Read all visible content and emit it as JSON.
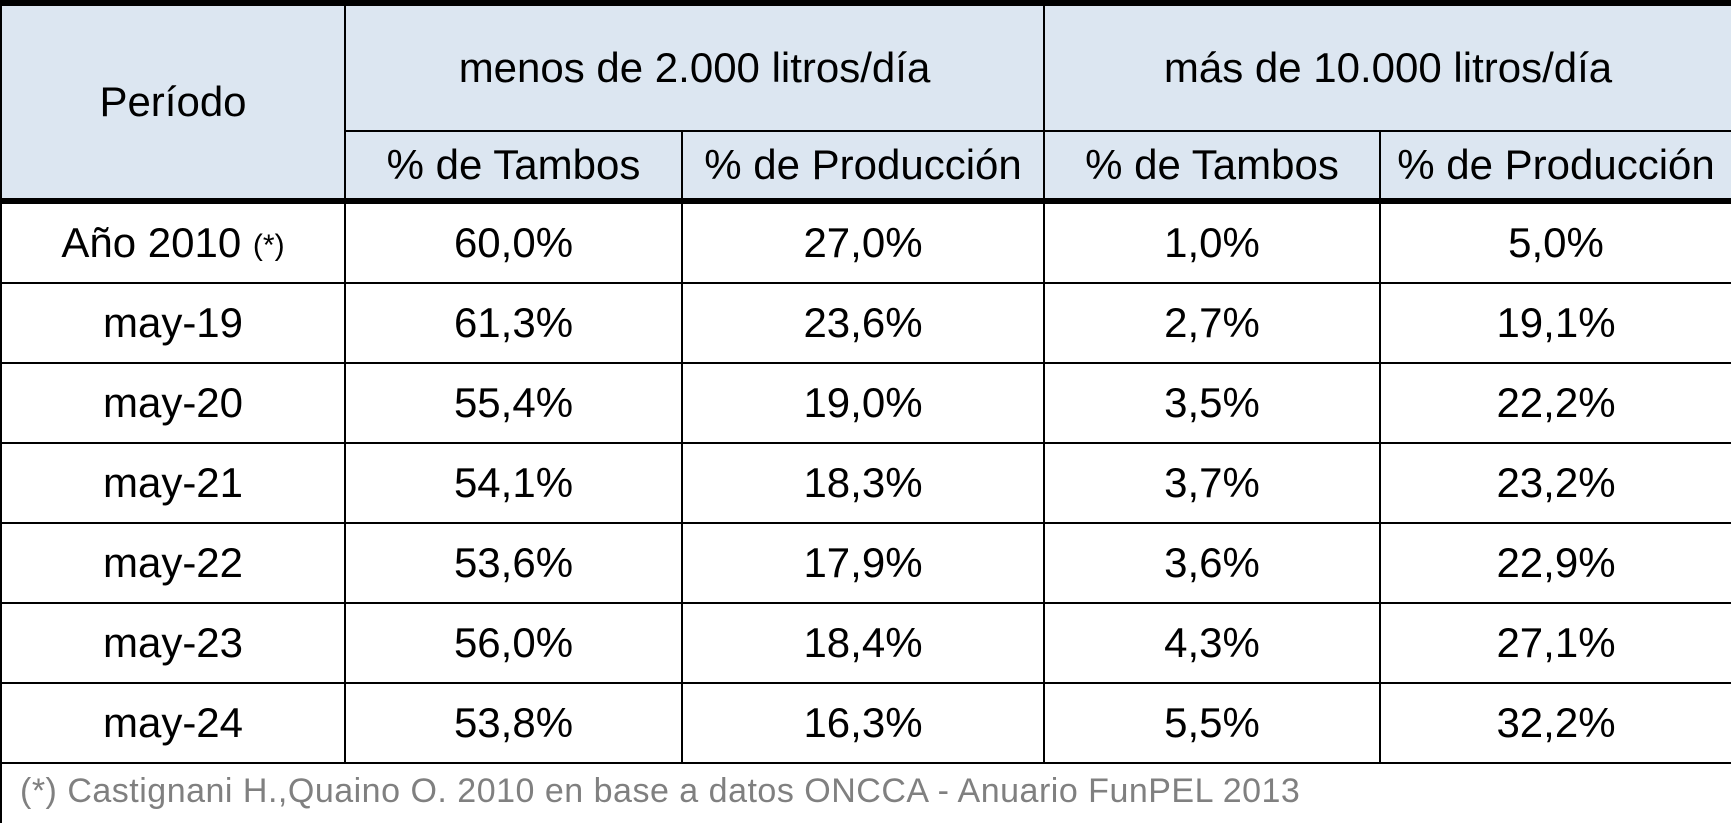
{
  "table": {
    "period_header": "Período",
    "groups": [
      {
        "label": "menos de 2.000 litros/día"
      },
      {
        "label": "más de 10.000 litros/día"
      }
    ],
    "subheaders": [
      "% de Tambos",
      "% de Producción",
      "% de Tambos",
      "% de Producción"
    ],
    "rows": [
      {
        "period": "Año 2010",
        "note": "(*)",
        "values": [
          "60,0%",
          "27,0%",
          "1,0%",
          "5,0%"
        ]
      },
      {
        "period": "may-19",
        "note": "",
        "values": [
          "61,3%",
          "23,6%",
          "2,7%",
          "19,1%"
        ]
      },
      {
        "period": "may-20",
        "note": "",
        "values": [
          "55,4%",
          "19,0%",
          "3,5%",
          "22,2%"
        ]
      },
      {
        "period": "may-21",
        "note": "",
        "values": [
          "54,1%",
          "18,3%",
          "3,7%",
          "23,2%"
        ]
      },
      {
        "period": "may-22",
        "note": "",
        "values": [
          "53,6%",
          "17,9%",
          "3,6%",
          "22,9%"
        ]
      },
      {
        "period": "may-23",
        "note": "",
        "values": [
          "56,0%",
          "18,4%",
          "4,3%",
          "27,1%"
        ]
      },
      {
        "period": "may-24",
        "note": "",
        "values": [
          "53,8%",
          "16,3%",
          "5,5%",
          "32,2%"
        ]
      }
    ]
  },
  "footnote": "(*) Castignani H.,Quaino O. 2010 en base a datos ONCCA - Anuario FunPEL 2013",
  "colors": {
    "header_bg": "#dce6f1",
    "border": "#000000",
    "footnote_text": "#808080"
  }
}
